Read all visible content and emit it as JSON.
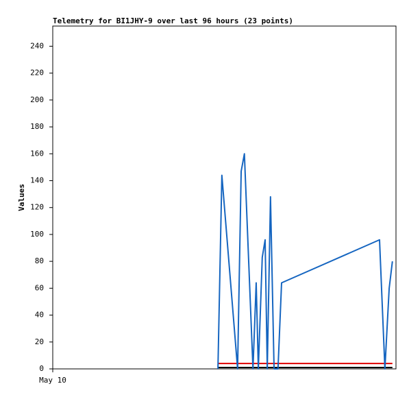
{
  "chart_data": {
    "type": "line",
    "title": "Telemetry for BI1JHY-9 over last 96 hours (23 points)",
    "y_label": "Values",
    "xlim": [
      0,
      96
    ],
    "xticks": [
      {
        "value": 0,
        "label": "May 10"
      }
    ],
    "ylim": [
      0,
      255
    ],
    "yticks": [
      0,
      20,
      40,
      60,
      80,
      100,
      120,
      140,
      160,
      180,
      200,
      220,
      240
    ],
    "series": [
      {
        "color": "#1565c0",
        "x": [
          46.2,
          47.3,
          51.7,
          52.7,
          53.6,
          56.0,
          56.9,
          57.5,
          58.6,
          59.4,
          60.0,
          60.9,
          61.9,
          63.0,
          64.0,
          91.4,
          92.9,
          94.1,
          95.0
        ],
        "values": [
          0,
          144,
          0,
          147,
          160,
          0,
          64,
          0,
          83,
          96,
          0,
          128,
          0,
          0,
          64,
          96,
          0,
          60,
          80
        ]
      },
      {
        "color": "#e00000",
        "x": [
          46.2,
          95.0
        ],
        "values": [
          4,
          4
        ]
      },
      {
        "color": "#000000",
        "x": [
          46.2,
          95.0
        ],
        "values": [
          1,
          1
        ]
      }
    ]
  }
}
